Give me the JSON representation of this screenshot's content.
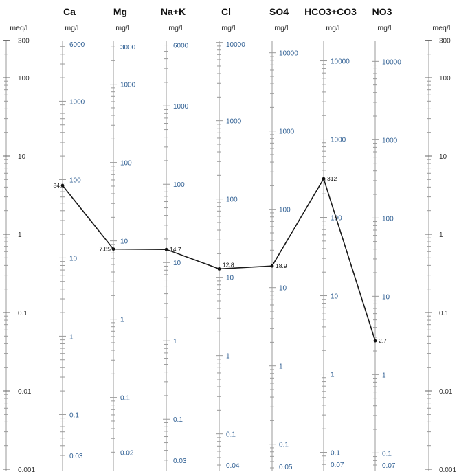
{
  "chart_data": {
    "type": "line",
    "title": "",
    "left_axis": {
      "label": "meq/L",
      "ticks": [
        "300",
        "100",
        "10",
        "1",
        "0.1",
        "0.01",
        "0.001"
      ],
      "range": [
        0.001,
        300
      ],
      "scale": "log"
    },
    "right_axis": {
      "label": "meq/L",
      "ticks": [
        "300",
        "100",
        "10",
        "1",
        "0.1",
        "0.01",
        "0.001"
      ]
    },
    "columns": [
      {
        "name": "Ca",
        "unit": "mg/L",
        "ticks": [
          "6000",
          "1000",
          "100",
          "10",
          "1",
          "0.1",
          "0.03"
        ]
      },
      {
        "name": "Mg",
        "unit": "mg/L",
        "ticks": [
          "3000",
          "1000",
          "100",
          "10",
          "1",
          "0.1",
          "0.02"
        ]
      },
      {
        "name": "Na+K",
        "unit": "mg/L",
        "ticks": [
          "6000",
          "1000",
          "100",
          "10",
          "1",
          "0.1",
          "0.03"
        ]
      },
      {
        "name": "Cl",
        "unit": "mg/L",
        "ticks": [
          "10000",
          "1000",
          "100",
          "10",
          "1",
          "0.1",
          "0.04"
        ]
      },
      {
        "name": "SO4",
        "unit": "mg/L",
        "ticks": [
          "10000",
          "1000",
          "100",
          "10",
          "1",
          "0.1",
          "0.05"
        ]
      },
      {
        "name": "HCO3+CO3",
        "unit": "mg/L",
        "ticks": [
          "10000",
          "1000",
          "100",
          "10",
          "1",
          "0.1",
          "0.07"
        ]
      },
      {
        "name": "NO3",
        "unit": "mg/L",
        "ticks": [
          "10000",
          "1000",
          "100",
          "10",
          "1",
          "0.1",
          "0.07"
        ]
      }
    ],
    "series": [
      {
        "categories": [
          "Ca",
          "Mg",
          "Na+K",
          "Cl",
          "SO4",
          "HCO3+CO3",
          "NO3"
        ],
        "values": [
          84,
          7.85,
          14.7,
          12.8,
          18.9,
          312,
          2.7
        ],
        "point_labels": [
          "84",
          "7.85",
          "14.7",
          "12.8",
          "18.9",
          "312",
          "2.7"
        ]
      }
    ]
  }
}
